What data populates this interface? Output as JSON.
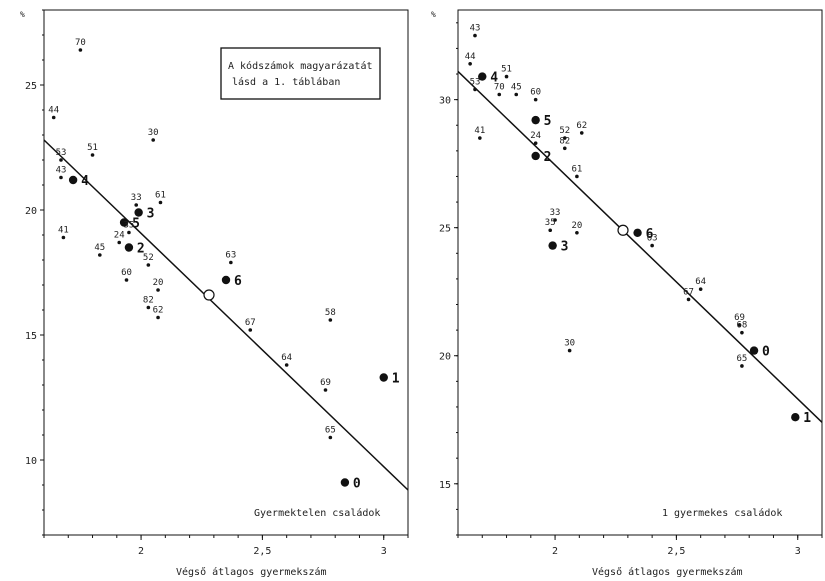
{
  "chart_data": [
    {
      "type": "scatter",
      "unit_label": "%",
      "xlabel": "Végső átlagos gyermekszám",
      "caption": "Gyermektelen családok",
      "note_lines": [
        "A kódszámok magyarázatát",
        "lásd a 1. táblában"
      ],
      "xlim": [
        1.6,
        3.1
      ],
      "ylim": [
        7,
        28
      ],
      "xticks": [
        "2",
        "2,5",
        "3"
      ],
      "yticks": [
        "10",
        "15",
        "20",
        "25"
      ],
      "trend": {
        "x": [
          1.6,
          3.1
        ],
        "y": [
          22.8,
          8.8
        ]
      },
      "center_marker": {
        "x": 2.28,
        "y": 16.6
      },
      "points": [
        {
          "label": "70",
          "x": 1.75,
          "y": 26.4,
          "big": false
        },
        {
          "label": "44",
          "x": 1.64,
          "y": 23.7,
          "big": false
        },
        {
          "label": "51",
          "x": 1.8,
          "y": 22.2,
          "big": false
        },
        {
          "label": "30",
          "x": 2.05,
          "y": 22.8,
          "big": false
        },
        {
          "label": "53",
          "x": 1.67,
          "y": 22.0,
          "big": false
        },
        {
          "label": "43",
          "x": 1.67,
          "y": 21.3,
          "big": false
        },
        {
          "label": "4",
          "x": 1.72,
          "y": 21.2,
          "big": true
        },
        {
          "label": "33",
          "x": 1.98,
          "y": 20.2,
          "big": false
        },
        {
          "label": "3",
          "x": 1.99,
          "y": 19.9,
          "big": true
        },
        {
          "label": "61",
          "x": 2.08,
          "y": 20.3,
          "big": false
        },
        {
          "label": "5",
          "x": 1.93,
          "y": 19.5,
          "big": true
        },
        {
          "label": "35",
          "x": 1.95,
          "y": 19.1,
          "big": false
        },
        {
          "label": "41",
          "x": 1.68,
          "y": 18.9,
          "big": false
        },
        {
          "label": "24",
          "x": 1.91,
          "y": 18.7,
          "big": false
        },
        {
          "label": "2",
          "x": 1.95,
          "y": 18.5,
          "big": true
        },
        {
          "label": "45",
          "x": 1.83,
          "y": 18.2,
          "big": false
        },
        {
          "label": "52",
          "x": 2.03,
          "y": 17.8,
          "big": false
        },
        {
          "label": "63",
          "x": 2.37,
          "y": 17.9,
          "big": false
        },
        {
          "label": "6",
          "x": 2.35,
          "y": 17.2,
          "big": true
        },
        {
          "label": "60",
          "x": 1.94,
          "y": 17.2,
          "big": false
        },
        {
          "label": "20",
          "x": 2.07,
          "y": 16.8,
          "big": false
        },
        {
          "label": "82",
          "x": 2.03,
          "y": 16.1,
          "big": false
        },
        {
          "label": "62",
          "x": 2.07,
          "y": 15.7,
          "big": false
        },
        {
          "label": "58",
          "x": 2.78,
          "y": 15.6,
          "big": false
        },
        {
          "label": "67",
          "x": 2.45,
          "y": 15.2,
          "big": false
        },
        {
          "label": "64",
          "x": 2.6,
          "y": 13.8,
          "big": false
        },
        {
          "label": "1",
          "x": 3.0,
          "y": 13.3,
          "big": true
        },
        {
          "label": "69",
          "x": 2.76,
          "y": 12.8,
          "big": false
        },
        {
          "label": "65",
          "x": 2.78,
          "y": 10.9,
          "big": false
        },
        {
          "label": "0",
          "x": 2.84,
          "y": 9.1,
          "big": true
        }
      ]
    },
    {
      "type": "scatter",
      "unit_label": "%",
      "xlabel": "Végső átlagos gyermekszám",
      "caption": "1 gyermekes családok",
      "xlim": [
        1.6,
        3.1
      ],
      "ylim": [
        13,
        33.5
      ],
      "xticks": [
        "2",
        "2,5",
        "3"
      ],
      "yticks": [
        "15",
        "20",
        "25",
        "30"
      ],
      "trend": {
        "x": [
          1.6,
          3.1
        ],
        "y": [
          31.1,
          17.4
        ]
      },
      "center_marker": {
        "x": 2.28,
        "y": 24.9
      },
      "points": [
        {
          "label": "43",
          "x": 1.67,
          "y": 32.5,
          "big": false
        },
        {
          "label": "44",
          "x": 1.65,
          "y": 31.4,
          "big": false
        },
        {
          "label": "4",
          "x": 1.7,
          "y": 30.9,
          "big": true
        },
        {
          "label": "51",
          "x": 1.8,
          "y": 30.9,
          "big": false
        },
        {
          "label": "53",
          "x": 1.67,
          "y": 30.4,
          "big": false
        },
        {
          "label": "70",
          "x": 1.77,
          "y": 30.2,
          "big": false
        },
        {
          "label": "45",
          "x": 1.84,
          "y": 30.2,
          "big": false
        },
        {
          "label": "60",
          "x": 1.92,
          "y": 30.0,
          "big": false
        },
        {
          "label": "5",
          "x": 1.92,
          "y": 29.2,
          "big": true
        },
        {
          "label": "52",
          "x": 2.04,
          "y": 28.5,
          "big": false
        },
        {
          "label": "62",
          "x": 2.11,
          "y": 28.7,
          "big": false
        },
        {
          "label": "41",
          "x": 1.69,
          "y": 28.5,
          "big": false
        },
        {
          "label": "24",
          "x": 1.92,
          "y": 28.3,
          "big": false
        },
        {
          "label": "82",
          "x": 2.04,
          "y": 28.1,
          "big": false
        },
        {
          "label": "2",
          "x": 1.92,
          "y": 27.8,
          "big": true
        },
        {
          "label": "61",
          "x": 2.09,
          "y": 27.0,
          "big": false
        },
        {
          "label": "33",
          "x": 2.0,
          "y": 25.3,
          "big": false
        },
        {
          "label": "6",
          "x": 2.34,
          "y": 24.8,
          "big": true
        },
        {
          "label": "35",
          "x": 1.98,
          "y": 24.9,
          "big": false
        },
        {
          "label": "20",
          "x": 2.09,
          "y": 24.8,
          "big": false
        },
        {
          "label": "63",
          "x": 2.4,
          "y": 24.3,
          "big": false
        },
        {
          "label": "3",
          "x": 1.99,
          "y": 24.3,
          "big": true
        },
        {
          "label": "64",
          "x": 2.6,
          "y": 22.6,
          "big": false
        },
        {
          "label": "67",
          "x": 2.55,
          "y": 22.2,
          "big": false
        },
        {
          "label": "69",
          "x": 2.76,
          "y": 21.2,
          "big": false
        },
        {
          "label": "68",
          "x": 2.77,
          "y": 20.9,
          "big": false
        },
        {
          "label": "30",
          "x": 2.06,
          "y": 20.2,
          "big": false
        },
        {
          "label": "0",
          "x": 2.82,
          "y": 20.2,
          "big": true
        },
        {
          "label": "65",
          "x": 2.77,
          "y": 19.6,
          "big": false
        },
        {
          "label": "1",
          "x": 2.99,
          "y": 17.6,
          "big": true
        }
      ]
    }
  ]
}
